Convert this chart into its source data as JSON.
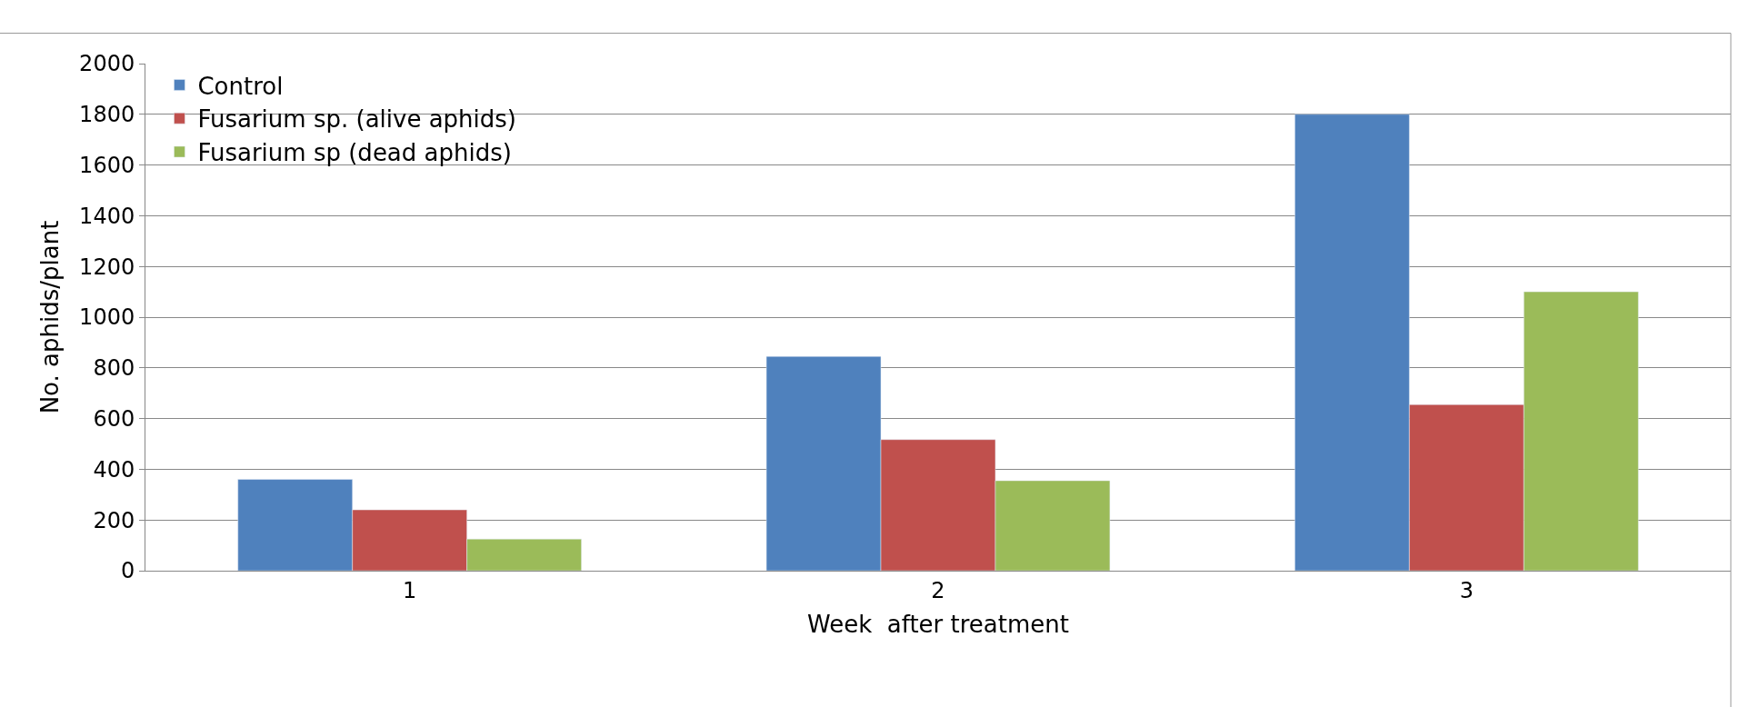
{
  "chart_data": {
    "type": "bar",
    "xlabel": "Week  after treatment",
    "ylabel": "No. aphids/plant",
    "categories": [
      "1",
      "2",
      "3"
    ],
    "series": [
      {
        "name": "Control",
        "color": "#4f81bd",
        "values": [
          360,
          845,
          1800
        ]
      },
      {
        "name": "Fusarium sp. (alive aphids)",
        "color": "#c0504d",
        "values": [
          240,
          517,
          655
        ]
      },
      {
        "name": "Fusarium sp (dead aphids)",
        "color": "#9bbb59",
        "values": [
          125,
          355,
          1100
        ]
      }
    ],
    "ylim": [
      0,
      2000
    ],
    "yticks": [
      0,
      200,
      400,
      600,
      800,
      1000,
      1200,
      1400,
      1600,
      1800,
      2000
    ],
    "grid": "y",
    "legend": "top left"
  }
}
